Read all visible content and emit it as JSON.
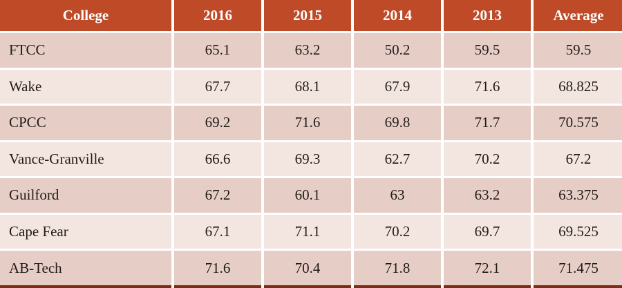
{
  "chart_data": {
    "type": "table",
    "title": "",
    "columns": [
      "College",
      "2016",
      "2015",
      "2014",
      "2013",
      "Average"
    ],
    "rows": [
      [
        "FTCC",
        65.1,
        63.2,
        50.2,
        59.5,
        59.5
      ],
      [
        "Wake",
        67.7,
        68.1,
        67.9,
        71.6,
        68.825
      ],
      [
        "CPCC",
        69.2,
        71.6,
        69.8,
        71.7,
        70.575
      ],
      [
        "Vance-Granville",
        66.6,
        69.3,
        62.7,
        70.2,
        67.2
      ],
      [
        "Guilford",
        67.2,
        60.1,
        63,
        63.2,
        63.375
      ],
      [
        "Cape Fear",
        67.1,
        71.1,
        70.2,
        69.7,
        69.525
      ],
      [
        "AB-Tech",
        71.6,
        70.4,
        71.8,
        72.1,
        71.475
      ]
    ]
  },
  "table": {
    "columns": [
      "College",
      "2016",
      "2015",
      "2014",
      "2013",
      "Average"
    ],
    "rows": [
      {
        "college": "FTCC",
        "values": [
          "65.1",
          "63.2",
          "50.2",
          "59.5",
          "59.5"
        ]
      },
      {
        "college": "Wake",
        "values": [
          "67.7",
          "68.1",
          "67.9",
          "71.6",
          "68.825"
        ]
      },
      {
        "college": "CPCC",
        "values": [
          "69.2",
          "71.6",
          "69.8",
          "71.7",
          "70.575"
        ]
      },
      {
        "college": "Vance-Granville",
        "values": [
          "66.6",
          "69.3",
          "62.7",
          "70.2",
          "67.2"
        ]
      },
      {
        "college": "Guilford",
        "values": [
          "67.2",
          "60.1",
          "63",
          "63.2",
          "63.375"
        ]
      },
      {
        "college": "Cape Fear",
        "values": [
          "67.1",
          "71.1",
          "70.2",
          "69.7",
          "69.525"
        ]
      },
      {
        "college": "AB-Tech",
        "values": [
          "71.6",
          "70.4",
          "71.8",
          "72.1",
          "71.475"
        ]
      }
    ]
  },
  "colors": {
    "header_bg": "#BE4A28",
    "row_dark": "#E6CEC7",
    "row_light": "#F3E6E1",
    "grid": "#FFFFFF",
    "bottom_border": "#7B2D15",
    "header_text": "#FFFFFF",
    "body_text": "#211A16"
  }
}
